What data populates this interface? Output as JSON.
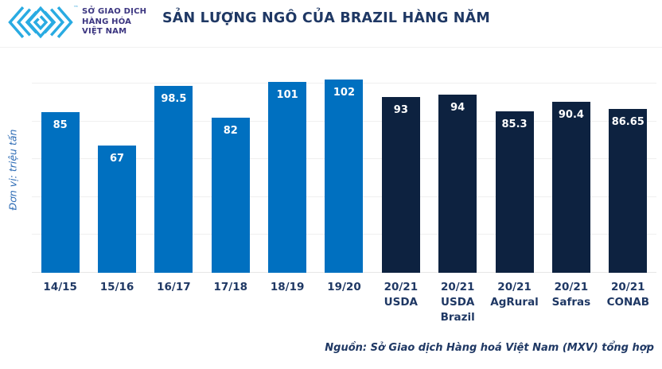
{
  "header": {
    "logo_text": "SỞ GIAO DỊCH\nHÀNG HÓA\nVIỆT NAM",
    "trademark": "™",
    "title": "SẢN LƯỢNG NGÔ CỦA BRAZIL HÀNG NĂM"
  },
  "chart_data": {
    "type": "bar",
    "title": "SẢN LƯỢNG NGÔ CỦA BRAZIL HÀNG NĂM",
    "ylabel": "Đơn vị: triệu tấn",
    "xlabel": "",
    "ylim": [
      0,
      105
    ],
    "grid": true,
    "gridline_values": [
      20,
      40,
      60,
      80,
      100
    ],
    "legend_position": "none",
    "colors": {
      "historical": "#0070C0",
      "estimate": "#0D2240"
    },
    "bars": [
      {
        "category_lines": [
          "14/15"
        ],
        "value": 85,
        "label": "85",
        "color": "historical"
      },
      {
        "category_lines": [
          "15/16"
        ],
        "value": 67,
        "label": "67",
        "color": "historical"
      },
      {
        "category_lines": [
          "16/17"
        ],
        "value": 98.5,
        "label": "98.5",
        "color": "historical"
      },
      {
        "category_lines": [
          "17/18"
        ],
        "value": 82,
        "label": "82",
        "color": "historical"
      },
      {
        "category_lines": [
          "18/19"
        ],
        "value": 101,
        "label": "101",
        "color": "historical"
      },
      {
        "category_lines": [
          "19/20"
        ],
        "value": 102,
        "label": "102",
        "color": "historical"
      },
      {
        "category_lines": [
          "20/21",
          "USDA"
        ],
        "value": 93,
        "label": "93",
        "color": "estimate"
      },
      {
        "category_lines": [
          "20/21",
          "USDA",
          "Brazil"
        ],
        "value": 94,
        "label": "94",
        "color": "estimate"
      },
      {
        "category_lines": [
          "20/21",
          "AgRural"
        ],
        "value": 85.3,
        "label": "85.3",
        "color": "estimate"
      },
      {
        "category_lines": [
          "20/21",
          "Safras"
        ],
        "value": 90.4,
        "label": "90.4",
        "color": "estimate"
      },
      {
        "category_lines": [
          "20/21",
          "CONAB"
        ],
        "value": 86.65,
        "label": "86.65",
        "color": "estimate"
      }
    ]
  },
  "footer": {
    "source": "Nguồn: Sở Giao dịch Hàng hoá Việt Nam (MXV) tổng hợp"
  }
}
